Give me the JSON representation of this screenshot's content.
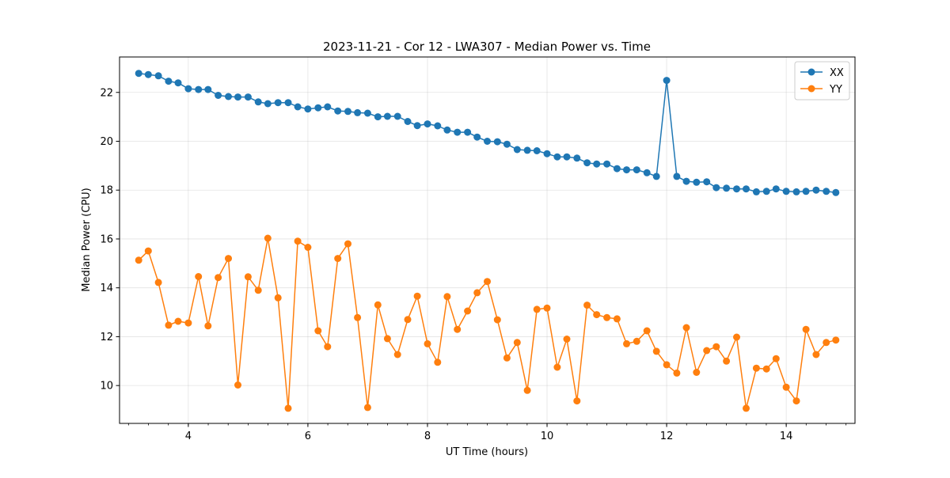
{
  "chart_data": {
    "type": "line",
    "title": "2023-11-21 - Cor 12 - LWA307 - Median Power vs. Time",
    "xlabel": "UT Time (hours)",
    "ylabel": "Median Power (CPU)",
    "xlim": [
      2.85,
      15.15
    ],
    "ylim": [
      8.45,
      23.45
    ],
    "xticks": [
      4,
      6,
      8,
      10,
      12,
      14
    ],
    "xtick_labels": [
      "4",
      "6",
      "8",
      "10",
      "12",
      "14"
    ],
    "xminor_step": 0.333333,
    "yticks": [
      10,
      12,
      14,
      16,
      18,
      20,
      22
    ],
    "ytick_labels": [
      "10",
      "12",
      "14",
      "16",
      "18",
      "20",
      "22"
    ],
    "grid": true,
    "legend_position": "top-right",
    "x": [
      3.17,
      3.33,
      3.5,
      3.67,
      3.83,
      4.0,
      4.17,
      4.33,
      4.5,
      4.67,
      4.83,
      5.0,
      5.17,
      5.33,
      5.5,
      5.67,
      5.83,
      6.0,
      6.17,
      6.33,
      6.5,
      6.67,
      6.83,
      7.0,
      7.17,
      7.33,
      7.5,
      7.67,
      7.83,
      8.0,
      8.17,
      8.33,
      8.5,
      8.67,
      8.83,
      9.0,
      9.17,
      9.33,
      9.5,
      9.67,
      9.83,
      10.0,
      10.17,
      10.33,
      10.5,
      10.67,
      10.83,
      11.0,
      11.17,
      11.33,
      11.5,
      11.67,
      11.83,
      12.0,
      12.17,
      12.33,
      12.5,
      12.67,
      12.83,
      13.0,
      13.17,
      13.33,
      13.5,
      13.67,
      13.83,
      14.0,
      14.17,
      14.33,
      14.5,
      14.67,
      14.83
    ],
    "series": [
      {
        "name": "XX",
        "color": "#1f77b4",
        "values": [
          22.78,
          22.73,
          22.68,
          22.46,
          22.39,
          22.15,
          22.12,
          22.12,
          21.88,
          21.83,
          21.81,
          21.81,
          21.61,
          21.54,
          21.58,
          21.58,
          21.41,
          21.32,
          21.37,
          21.41,
          21.24,
          21.22,
          21.17,
          21.15,
          21.0,
          21.02,
          21.02,
          20.81,
          20.64,
          20.71,
          20.63,
          20.46,
          20.37,
          20.37,
          20.17,
          20.0,
          19.98,
          19.88,
          19.66,
          19.63,
          19.61,
          19.49,
          19.36,
          19.36,
          19.31,
          19.12,
          19.07,
          19.07,
          18.88,
          18.83,
          18.83,
          18.71,
          18.56,
          22.49,
          18.56,
          18.36,
          18.32,
          18.34,
          18.1,
          18.08,
          18.05,
          18.05,
          17.93,
          17.95,
          18.05,
          17.95,
          17.93,
          17.95,
          18.0,
          17.95,
          17.9
        ]
      },
      {
        "name": "YY",
        "color": "#ff7f0e",
        "values": [
          15.13,
          15.51,
          14.22,
          12.47,
          12.63,
          12.56,
          14.46,
          12.44,
          14.42,
          15.2,
          10.02,
          14.45,
          13.9,
          16.03,
          13.59,
          9.07,
          15.91,
          15.66,
          12.24,
          11.59,
          15.2,
          15.8,
          12.78,
          9.1,
          13.3,
          11.92,
          11.27,
          12.7,
          13.66,
          11.71,
          10.95,
          13.64,
          12.3,
          13.05,
          13.8,
          14.26,
          12.69,
          11.13,
          11.76,
          9.8,
          13.12,
          13.17,
          10.75,
          11.9,
          9.37,
          13.29,
          12.9,
          12.78,
          12.73,
          11.71,
          11.81,
          12.24,
          11.4,
          10.85,
          10.51,
          12.37,
          10.54,
          11.43,
          11.59,
          11.0,
          11.98,
          9.07,
          10.71,
          10.68,
          11.1,
          9.93,
          9.37,
          12.3,
          11.27,
          11.76,
          11.86
        ]
      }
    ]
  }
}
